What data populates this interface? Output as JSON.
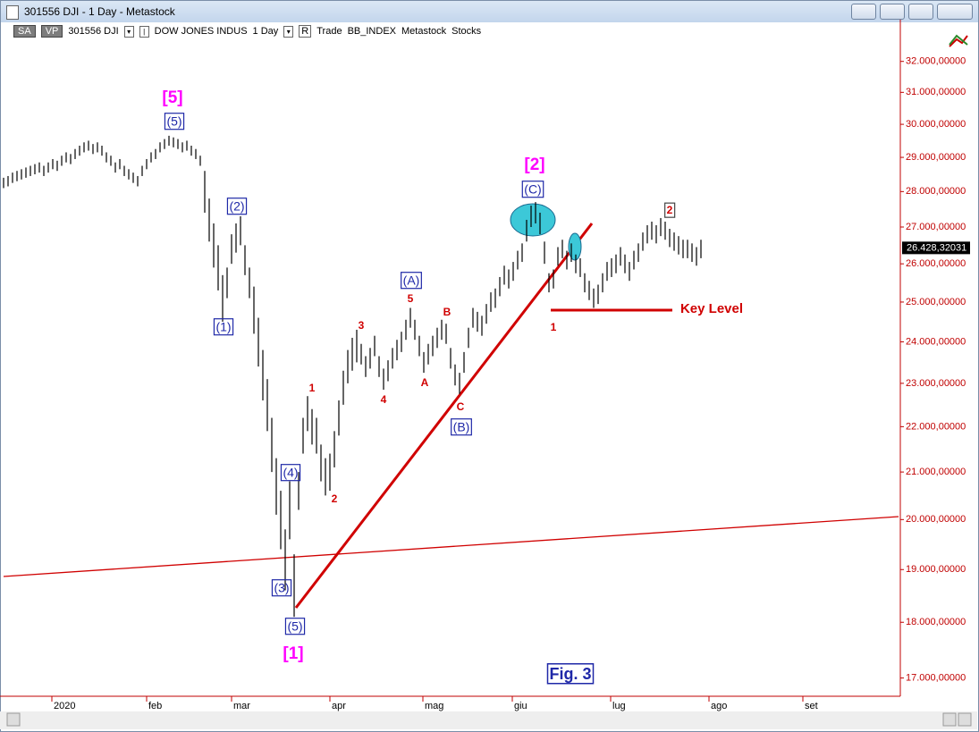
{
  "window": {
    "title": "301556 DJI - 1 Day - Metastock",
    "toolbar": [
      "SA",
      "VP",
      "301556 DJI",
      "DOW JONES INDUS",
      "1 Day",
      "R",
      "Trade",
      "BB_INDEX",
      "Metastock",
      "Stocks"
    ]
  },
  "chart_data": {
    "type": "hilo",
    "color": "#000000",
    "log_scale": true,
    "high": [
      28400,
      28450,
      28550,
      28600,
      28650,
      28700,
      28750,
      28800,
      28850,
      28750,
      28850,
      28950,
      28900,
      29050,
      29150,
      29100,
      29250,
      29350,
      29450,
      29500,
      29400,
      29450,
      29350,
      29150,
      29050,
      28850,
      28950,
      28750,
      28650,
      28550,
      28450,
      28750,
      28950,
      29150,
      29250,
      29450,
      29550,
      29650,
      29600,
      29550,
      29450,
      29500,
      29350,
      29250,
      29050,
      28600,
      27800,
      27100,
      26500,
      25700,
      25900,
      26800,
      27100,
      27300,
      26500,
      25900,
      25400,
      24600,
      23800,
      23100,
      22200,
      21300,
      20600,
      19800,
      20800,
      19300,
      21000,
      22200,
      22700,
      22400,
      22200,
      21600,
      21300,
      21400,
      21900,
      22600,
      23300,
      23800,
      24100,
      24300,
      23950,
      23650,
      23850,
      24150,
      23650,
      23350,
      23550,
      23850,
      24050,
      24250,
      24550,
      24850,
      24550,
      24150,
      23750,
      23950,
      24150,
      24350,
      24550,
      24450,
      23850,
      23450,
      23250,
      23750,
      24350,
      24850,
      24750,
      24650,
      24950,
      25250,
      25350,
      25650,
      25950,
      25850,
      26050,
      26350,
      26550,
      27200,
      27600,
      27700,
      27400,
      26600,
      25750,
      25850,
      26450,
      26650,
      26350,
      26550,
      26250,
      26150,
      25750,
      25550,
      25350,
      25450,
      25750,
      26050,
      26150,
      26250,
      26450,
      26250,
      26050,
      26350,
      26550,
      26850,
      27050,
      27150,
      27050,
      27250,
      27150,
      26950,
      26850,
      26750,
      26650,
      26650,
      26550,
      26450,
      26650
    ],
    "low": [
      28100,
      28150,
      28250,
      28300,
      28350,
      28400,
      28450,
      28500,
      28550,
      28450,
      28550,
      28650,
      28600,
      28750,
      28850,
      28800,
      28950,
      29050,
      29150,
      29200,
      29100,
      29150,
      29050,
      28850,
      28750,
      28550,
      28650,
      28450,
      28350,
      28250,
      28150,
      28450,
      28650,
      28850,
      28950,
      29150,
      29250,
      29350,
      29300,
      29250,
      29150,
      29200,
      29050,
      28950,
      28750,
      27400,
      26600,
      25900,
      25300,
      24500,
      25100,
      26000,
      26300,
      26500,
      25700,
      25100,
      24200,
      23400,
      22600,
      21900,
      21000,
      20100,
      19400,
      18600,
      19600,
      18100,
      20200,
      21400,
      21900,
      21600,
      21400,
      20800,
      20500,
      20600,
      21100,
      21800,
      22500,
      23000,
      23300,
      23500,
      23450,
      23150,
      23350,
      23650,
      23150,
      22850,
      23050,
      23350,
      23550,
      23750,
      24050,
      24350,
      24050,
      23650,
      23250,
      23450,
      23650,
      23850,
      24050,
      23950,
      23350,
      22950,
      22750,
      23250,
      23850,
      24350,
      24250,
      24150,
      24450,
      24750,
      24850,
      25150,
      25450,
      25350,
      25550,
      25850,
      26050,
      26600,
      27000,
      27100,
      26800,
      26000,
      25250,
      25350,
      25950,
      26150,
      25850,
      26050,
      25750,
      25650,
      25250,
      25050,
      24850,
      24950,
      25250,
      25550,
      25650,
      25750,
      25950,
      25750,
      25550,
      25850,
      26050,
      26350,
      26550,
      26650,
      26550,
      26750,
      26650,
      26450,
      26350,
      26250,
      26150,
      26150,
      26050,
      25950,
      26150
    ],
    "xlim": [
      -0.8,
      200.2
    ],
    "xticks": [
      {
        "value": 10.8,
        "label": "2020"
      },
      {
        "value": 32,
        "label": "feb"
      },
      {
        "value": 51,
        "label": "mar"
      },
      {
        "value": 73,
        "label": "apr"
      },
      {
        "value": 93.8,
        "label": "mag"
      },
      {
        "value": 113.8,
        "label": "giu"
      },
      {
        "value": 135.8,
        "label": "lug"
      },
      {
        "value": 157.8,
        "label": "ago"
      },
      {
        "value": 178.8,
        "label": "set"
      }
    ],
    "ylim": [
      16700,
      33400
    ],
    "yticks": [
      {
        "value": 17000,
        "label": "17.000,00000"
      },
      {
        "value": 18000,
        "label": "18.000,00000"
      },
      {
        "value": 19000,
        "label": "19.000,00000"
      },
      {
        "value": 20000,
        "label": "20.000,00000"
      },
      {
        "value": 21000,
        "label": "21.000,00000"
      },
      {
        "value": 22000,
        "label": "22.000,00000"
      },
      {
        "value": 23000,
        "label": "23.000,00000"
      },
      {
        "value": 24000,
        "label": "24.000,00000"
      },
      {
        "value": 25000,
        "label": "25.000,00000"
      },
      {
        "value": 26000,
        "label": "26.000,00000"
      },
      {
        "value": 27000,
        "label": "27.000,00000"
      },
      {
        "value": 28000,
        "label": "28.000,00000"
      },
      {
        "value": 29000,
        "label": "29.000,00000"
      },
      {
        "value": 30000,
        "label": "30.000,00000"
      },
      {
        "value": 31000,
        "label": "31.000,00000"
      },
      {
        "value": 32000,
        "label": "32.000,00000"
      }
    ],
    "last_price": {
      "value": 26428.32031,
      "label": "26.428,32031"
    },
    "annotations": [
      "[5]",
      "(5)",
      "(2)",
      "(1)",
      "(4)",
      "(3)",
      "(5)",
      "[1]",
      "1",
      "2",
      "3",
      "4",
      "5",
      "(A)",
      "A",
      "B",
      "C",
      "(B)",
      "[2]",
      "(C)",
      "1",
      "2",
      "Key Level",
      "Fig. 3"
    ]
  }
}
